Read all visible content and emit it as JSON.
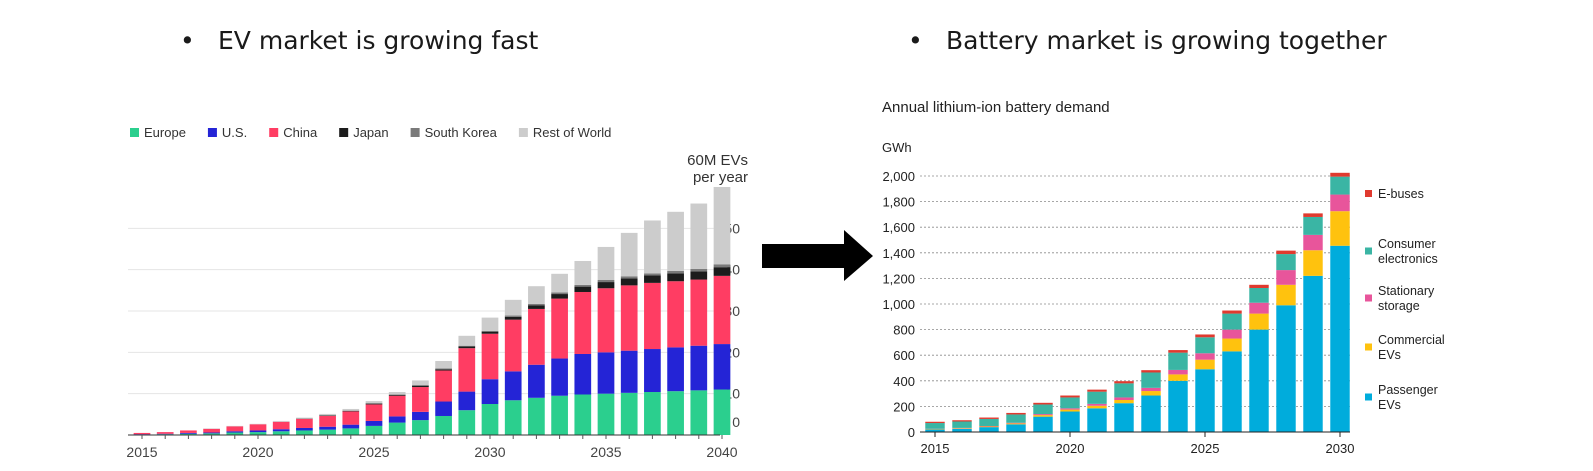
{
  "slide": {
    "bullet_symbol": "•",
    "left_heading": "EV market is growing fast",
    "right_heading": "Battery market is growing together"
  },
  "chart_data": [
    {
      "type": "bar",
      "stacked": true,
      "title": "",
      "annotation": [
        "60M EVs",
        "per year"
      ],
      "xlabel": "",
      "ylabel": "",
      "ylim": [
        0,
        60
      ],
      "yticks": [
        0,
        10,
        20,
        30,
        40,
        50
      ],
      "xticks": [
        "2015",
        "2020",
        "2025",
        "2030",
        "2035",
        "2040"
      ],
      "categories": [
        2015,
        2016,
        2017,
        2018,
        2019,
        2020,
        2021,
        2022,
        2023,
        2024,
        2025,
        2026,
        2027,
        2028,
        2029,
        2030,
        2031,
        2032,
        2033,
        2034,
        2035,
        2036,
        2037,
        2038,
        2039,
        2040
      ],
      "legend_position": "top-left",
      "series": [
        {
          "name": "Europe",
          "color": "#2bcf8e",
          "values": [
            0.1,
            0.2,
            0.3,
            0.4,
            0.6,
            0.7,
            0.9,
            1.1,
            1.3,
            1.6,
            2.2,
            3.0,
            3.6,
            4.6,
            6.0,
            7.5,
            8.4,
            9.0,
            9.5,
            9.8,
            10.0,
            10.2,
            10.4,
            10.6,
            10.8,
            11.0
          ]
        },
        {
          "name": "U.S.",
          "color": "#2424d6",
          "values": [
            0.1,
            0.1,
            0.2,
            0.2,
            0.3,
            0.4,
            0.5,
            0.6,
            0.7,
            0.9,
            1.2,
            1.5,
            2.0,
            3.5,
            4.5,
            6.0,
            7.0,
            8.0,
            9.0,
            9.8,
            10.0,
            10.2,
            10.4,
            10.6,
            10.8,
            11.0
          ]
        },
        {
          "name": "China",
          "color": "#ff3d63",
          "values": [
            0.3,
            0.4,
            0.6,
            0.9,
            1.2,
            1.5,
            1.8,
            2.2,
            2.6,
            3.2,
            4.0,
            5.0,
            6.0,
            7.5,
            10.5,
            11.0,
            12.5,
            13.5,
            14.5,
            15.0,
            15.5,
            15.8,
            16.0,
            16.0,
            16.0,
            16.5
          ]
        },
        {
          "name": "Japan",
          "color": "#1c1c1c",
          "values": [
            0.0,
            0.0,
            0.0,
            0.0,
            0.0,
            0.0,
            0.0,
            0.0,
            0.1,
            0.1,
            0.2,
            0.2,
            0.3,
            0.3,
            0.4,
            0.5,
            0.7,
            0.9,
            1.1,
            1.3,
            1.5,
            1.7,
            1.8,
            1.9,
            2.0,
            2.1
          ]
        },
        {
          "name": "South Korea",
          "color": "#7a7a7a",
          "values": [
            0.0,
            0.0,
            0.0,
            0.0,
            0.0,
            0.0,
            0.0,
            0.1,
            0.1,
            0.1,
            0.1,
            0.1,
            0.2,
            0.2,
            0.2,
            0.2,
            0.3,
            0.3,
            0.4,
            0.4,
            0.5,
            0.5,
            0.5,
            0.6,
            0.6,
            0.7
          ]
        },
        {
          "name": "Rest of World",
          "color": "#cccccc",
          "values": [
            0.0,
            0.0,
            0.0,
            0.1,
            0.1,
            0.1,
            0.2,
            0.2,
            0.3,
            0.4,
            0.5,
            0.6,
            1.1,
            1.8,
            2.4,
            3.2,
            3.8,
            4.3,
            4.5,
            5.8,
            8.0,
            10.5,
            12.8,
            14.3,
            15.8,
            18.7
          ]
        }
      ]
    },
    {
      "type": "bar",
      "stacked": true,
      "title": "Annual lithium-ion battery demand",
      "ylabel": "GWh",
      "xlabel": "",
      "ylim": [
        0,
        2000
      ],
      "yticks": [
        "0",
        "200",
        "400",
        "600",
        "800",
        "1,000",
        "1,200",
        "1,400",
        "1,600",
        "1,800",
        "2,000"
      ],
      "ytick_values": [
        0,
        200,
        400,
        600,
        800,
        1000,
        1200,
        1400,
        1600,
        1800,
        2000
      ],
      "xticks": [
        "2015",
        "2020",
        "2025",
        "2030"
      ],
      "categories": [
        2015,
        2016,
        2017,
        2018,
        2019,
        2020,
        2021,
        2022,
        2023,
        2024,
        2025,
        2026,
        2027,
        2028,
        2029,
        2030
      ],
      "legend_position": "right",
      "series": [
        {
          "name": "Passenger EVs",
          "label_lines": [
            "Passenger",
            "EVs"
          ],
          "color": "#00acdc",
          "values": [
            20,
            25,
            38,
            60,
            120,
            160,
            185,
            225,
            285,
            400,
            490,
            630,
            800,
            990,
            1220,
            1455
          ]
        },
        {
          "name": "Commercial EVs",
          "label_lines": [
            "Commercial",
            "EVs"
          ],
          "color": "#ffc20e",
          "values": [
            3,
            4,
            5,
            7,
            12,
            15,
            20,
            25,
            35,
            50,
            75,
            100,
            125,
            160,
            200,
            270
          ]
        },
        {
          "name": "Stationary storage",
          "label_lines": [
            "Stationary",
            "storage"
          ],
          "color": "#e8559b",
          "values": [
            2,
            3,
            4,
            5,
            8,
            10,
            15,
            20,
            25,
            35,
            50,
            70,
            85,
            115,
            120,
            130
          ]
        },
        {
          "name": "Consumer electronics",
          "label_lines": [
            "Consumer",
            "electronics"
          ],
          "color": "#3ab5a4",
          "values": [
            45,
            50,
            55,
            65,
            75,
            85,
            95,
            110,
            120,
            135,
            125,
            125,
            115,
            125,
            140,
            140
          ]
        },
        {
          "name": "E-buses",
          "label_lines": [
            "E-buses"
          ],
          "color": "#e03a2f",
          "values": [
            10,
            10,
            11,
            12,
            13,
            15,
            16,
            17,
            18,
            20,
            22,
            24,
            25,
            27,
            28,
            30
          ]
        }
      ]
    }
  ]
}
